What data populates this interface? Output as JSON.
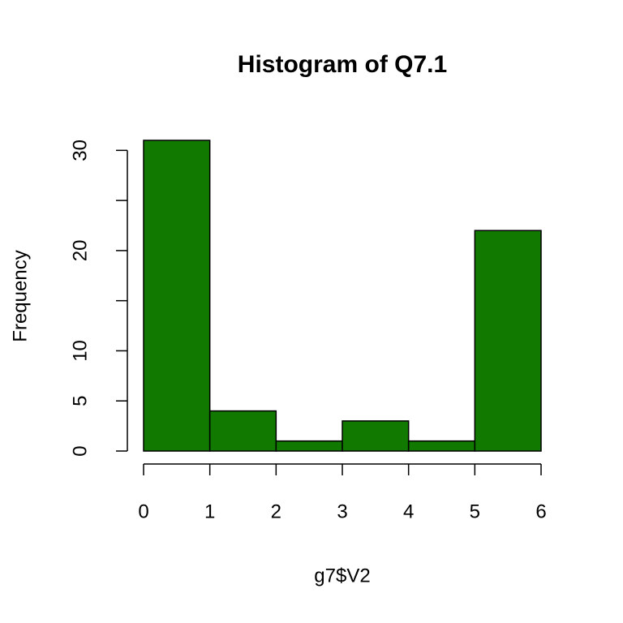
{
  "chart_data": {
    "type": "histogram",
    "title": "Histogram of Q7.1",
    "x_label": "g7$V2",
    "y_label": "Frequency",
    "bins": [
      0,
      1,
      2,
      3,
      4,
      5,
      6
    ],
    "values": [
      31,
      4,
      1,
      3,
      1,
      22
    ],
    "color": "#117800",
    "xlim": [
      0,
      6
    ],
    "xticks": [
      0,
      1,
      2,
      3,
      4,
      5,
      6
    ],
    "ylim": [
      0,
      31
    ],
    "yticks": [
      0,
      5,
      10,
      {
        "value": 15,
        "label": null
      },
      20,
      {
        "value": 25,
        "label": null
      },
      30
    ]
  }
}
